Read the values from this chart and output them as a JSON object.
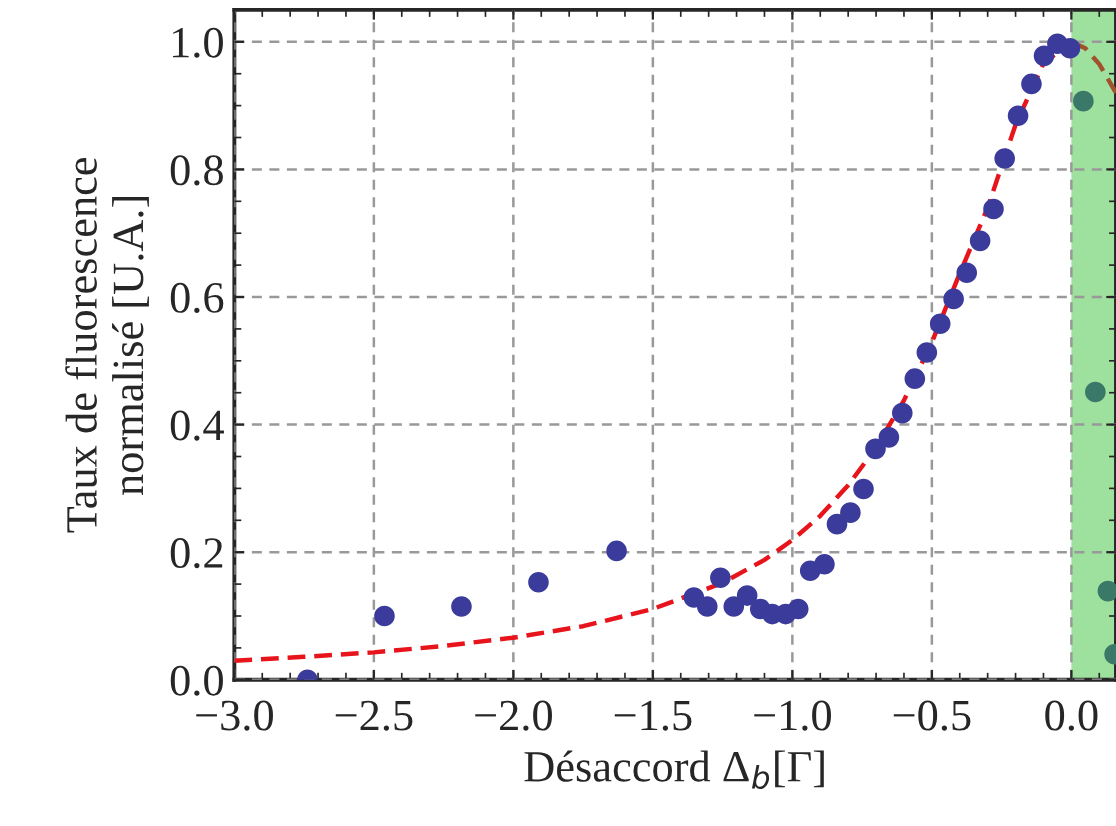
{
  "chart_data": {
    "type": "scatter",
    "xlabel": "Désaccord Δ$_{b}$[Γ]",
    "ylabel": "Taux de fluorescence\nnormalisé [U.A.]",
    "xlim": [
      -3.0,
      0.16
    ],
    "ylim": [
      0,
      1.05
    ],
    "xticks": [
      {
        "value": -3.0,
        "label": "−3.0"
      },
      {
        "value": -2.5,
        "label": "−2.5"
      },
      {
        "value": -2.0,
        "label": "−2.0"
      },
      {
        "value": -1.5,
        "label": "−1.5"
      },
      {
        "value": -1.0,
        "label": "−1.0"
      },
      {
        "value": -0.5,
        "label": "−0.5"
      },
      {
        "value": 0.0,
        "label": "0.0"
      }
    ],
    "yticks": [
      {
        "value": 0,
        "label": "0.0"
      },
      {
        "value": 0.2,
        "label": "0.2"
      },
      {
        "value": 0.4,
        "label": "0.4"
      },
      {
        "value": 0.6,
        "label": "0.6"
      },
      {
        "value": 0.8,
        "label": "0.8"
      },
      {
        "value": 1.0,
        "label": "1.0"
      }
    ],
    "grid": true,
    "marker": "circle",
    "bands": [
      {
        "axis": "x",
        "from": 0,
        "to": 0.16,
        "color": "#9ee09e"
      }
    ],
    "series": [
      {
        "type": "line",
        "color": "#e8141c",
        "line_style": "dashed",
        "marker": "none",
        "x": [
          -3,
          -2.75,
          -2.5,
          -2.25,
          -2,
          -1.75,
          -1.5,
          -1.25,
          -1.1,
          -1,
          -0.9,
          -0.8,
          -0.7,
          -0.6,
          -0.5,
          -0.4,
          -0.3,
          -0.2,
          -0.1,
          0
        ],
        "values": [
          0.03,
          0.036,
          0.043,
          0.053,
          0.066,
          0.084,
          0.111,
          0.152,
          0.188,
          0.219,
          0.257,
          0.305,
          0.364,
          0.438,
          0.529,
          0.637,
          0.74,
          0.87,
          0.966,
          1.0
        ]
      },
      {
        "type": "line",
        "color": "#a0522d",
        "line_style": "dashed",
        "marker": "none",
        "x": [
          0,
          0.05,
          0.1,
          0.16
        ],
        "values": [
          1.0,
          0.99,
          0.965,
          0.92
        ]
      },
      {
        "color": "#3b3b9b",
        "x": [
          -2.738,
          -2.462,
          -2.186,
          -1.91,
          -1.63,
          -1.353,
          -1.305,
          -1.258,
          -1.21,
          -1.162,
          -1.115,
          -1.072,
          -1.024,
          -0.979,
          -0.936,
          -0.885,
          -0.84,
          -0.792,
          -0.745,
          -0.702,
          -0.654,
          -0.606,
          -0.561,
          -0.518,
          -0.47,
          -0.422,
          -0.375,
          -0.327,
          -0.279,
          -0.239,
          -0.191,
          -0.143,
          -0.098,
          -0.05,
          -0.005
        ],
        "values": [
          0.0,
          0.1,
          0.115,
          0.153,
          0.202,
          0.129,
          0.115,
          0.16,
          0.115,
          0.132,
          0.111,
          0.103,
          0.103,
          0.111,
          0.171,
          0.181,
          0.244,
          0.262,
          0.299,
          0.362,
          0.38,
          0.418,
          0.472,
          0.513,
          0.558,
          0.597,
          0.638,
          0.688,
          0.738,
          0.817,
          0.884,
          0.934,
          0.978,
          0.997,
          0.99
        ]
      },
      {
        "color": "#3a7868",
        "x": [
          0.043,
          0.086,
          0.131,
          0.155
        ],
        "values": [
          0.907,
          0.451,
          0.139,
          0.04
        ]
      }
    ]
  }
}
